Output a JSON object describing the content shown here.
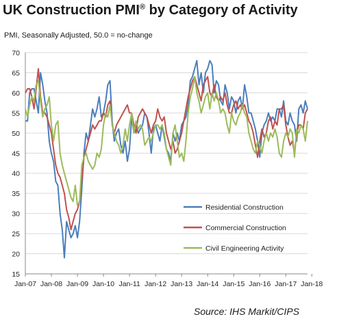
{
  "chart_data": {
    "type": "line",
    "title": "UK Construction PMI",
    "title_mark": "®",
    "title_suffix": " by Category of Activity",
    "subtitle": "PMI, Seasonally Adjusted,  50.0 = no-change",
    "source": "Source: IHS Markit/CIPS",
    "ylim": [
      15,
      70
    ],
    "y_ticks": [
      15,
      20,
      25,
      30,
      35,
      40,
      45,
      50,
      55,
      60,
      65,
      70
    ],
    "x_tick_labels": [
      "Jan-07",
      "Jan-08",
      "Jan-09",
      "Jan-10",
      "Jan-11",
      "Jan-12",
      "Jan-13",
      "Jan-14",
      "Jan-15",
      "Jan-16",
      "Jan-17",
      "Jan-18"
    ],
    "x_start": "Jan-07",
    "gridlines": "horizontal",
    "legend_position": "right",
    "series": [
      {
        "name": "Residential Construction",
        "color": "#4a7ebb",
        "values": [
          53,
          53,
          60,
          61,
          61,
          58,
          55,
          65,
          62,
          58,
          55,
          48,
          45,
          43,
          38,
          37,
          30,
          26,
          19,
          28,
          26,
          24,
          25,
          27,
          24,
          28,
          36,
          45,
          50,
          48,
          52,
          56,
          54,
          56,
          59,
          54,
          55,
          58,
          62,
          63,
          53,
          48,
          50,
          51,
          47,
          45,
          48,
          43,
          46,
          54,
          50,
          52,
          50,
          51,
          52,
          55,
          54,
          50,
          45,
          51,
          52,
          50,
          48,
          52,
          49,
          46,
          45,
          43,
          50,
          48,
          50,
          48,
          52,
          53,
          54,
          57,
          63,
          64,
          66,
          68,
          62,
          65,
          60,
          65,
          66,
          68,
          67,
          60,
          63,
          62,
          58,
          57,
          62,
          60,
          56,
          59,
          58,
          55,
          58,
          59,
          56,
          62,
          59,
          55,
          55,
          53,
          51,
          48,
          44,
          50,
          52,
          53,
          55,
          53,
          54,
          53,
          56,
          56,
          54,
          58,
          53,
          52,
          55,
          53,
          52,
          48,
          56,
          57,
          55,
          58,
          56
        ]
      },
      {
        "name": "Commercial Construction",
        "color": "#c0504d",
        "values": [
          60,
          61,
          61,
          59,
          56,
          61,
          66,
          59,
          55,
          55,
          54,
          52,
          50,
          46,
          42,
          40,
          39,
          37,
          35,
          31,
          29,
          26,
          28,
          30,
          31,
          33,
          38,
          44,
          46,
          48,
          50,
          52,
          51,
          52,
          53,
          53,
          55,
          54,
          57,
          58,
          52,
          50,
          52,
          53,
          54,
          55,
          56,
          57,
          55,
          55,
          52,
          50,
          54,
          55,
          56,
          55,
          54,
          52,
          50,
          52,
          53,
          56,
          54,
          53,
          54,
          50,
          48,
          46,
          48,
          45,
          46,
          48,
          50,
          53,
          56,
          59,
          61,
          63,
          64,
          62,
          60,
          58,
          62,
          63,
          64,
          60,
          59,
          62,
          59,
          58,
          59,
          58,
          60,
          57,
          55,
          55,
          57,
          58,
          56,
          57,
          56,
          57,
          55,
          53,
          52,
          50,
          47,
          44,
          48,
          51,
          49,
          50,
          53,
          54,
          51,
          53,
          52,
          56,
          56,
          57,
          52,
          49,
          47,
          48,
          45,
          50,
          52,
          52,
          51,
          55,
          56
        ]
      },
      {
        "name": "Civil Engineering Activity",
        "color": "#9bbb59",
        "values": [
          56,
          54,
          57,
          59,
          58,
          62,
          63,
          58,
          54,
          56,
          57,
          59,
          52,
          48,
          52,
          53,
          45,
          42,
          40,
          38,
          36,
          34,
          33,
          37,
          32,
          33,
          42,
          44,
          45,
          43,
          42,
          41,
          42,
          45,
          44,
          46,
          52,
          55,
          54,
          57,
          52,
          50,
          48,
          47,
          45,
          47,
          51,
          48,
          52,
          55,
          50,
          53,
          51,
          52,
          51,
          47,
          48,
          49,
          48,
          50,
          52,
          52,
          51,
          52,
          50,
          46,
          44,
          42,
          50,
          52,
          48,
          44,
          45,
          43,
          48,
          55,
          59,
          61,
          64,
          60,
          58,
          55,
          57,
          59,
          60,
          56,
          60,
          58,
          60,
          58,
          55,
          56,
          55,
          52,
          50,
          55,
          53,
          52,
          54,
          55,
          57,
          55,
          54,
          50,
          48,
          46,
          45,
          48,
          47,
          45,
          48,
          50,
          48,
          50,
          49,
          51,
          49,
          45,
          44,
          48,
          50,
          49,
          51,
          50,
          44,
          51,
          50,
          52,
          51,
          48,
          53
        ]
      }
    ]
  }
}
